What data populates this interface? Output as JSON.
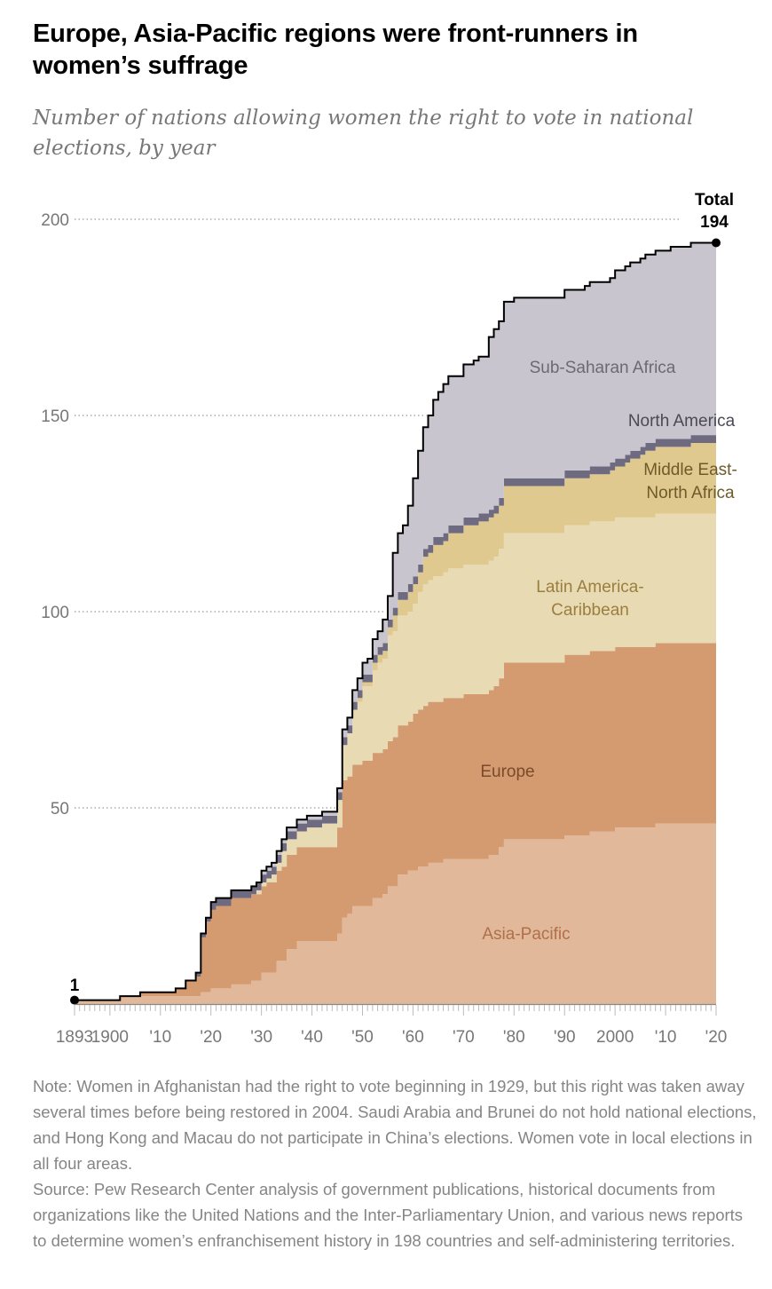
{
  "title": "Europe, Asia-Pacific regions were front-runners in women’s suffrage",
  "subtitle": "Number of nations allowing women the right to vote in national elections, by year",
  "chart_data": {
    "type": "area",
    "stacked": true,
    "step": true,
    "title": "Europe, Asia-Pacific regions were front-runners in women’s suffrage",
    "subtitle": "Number of nations allowing women the right to vote in national elections, by year",
    "xlim": [
      1893,
      2020
    ],
    "ylim": [
      0,
      200
    ],
    "y_ticks": [
      50,
      100,
      150,
      200
    ],
    "y_tick_labels": [
      "50",
      "100",
      "150",
      "200"
    ],
    "x_ticks": [
      1893,
      1900,
      1910,
      1920,
      1930,
      1940,
      1950,
      1960,
      1970,
      1980,
      1990,
      2000,
      2010,
      2020
    ],
    "x_tick_labels": [
      "1893",
      "1900",
      "'10",
      "'20",
      "'30",
      "'40",
      "'50",
      "'60",
      "'70",
      "'80",
      "'90",
      "2000",
      "'10",
      "'20"
    ],
    "grid": "dotted horizontal",
    "legend": "inline labels",
    "series": [
      {
        "name": "Asia-Pacific",
        "color": "#e2b89a",
        "label_color": "#b0704a",
        "steps": [
          [
            1893,
            1
          ],
          [
            1902,
            2
          ],
          [
            1918,
            3
          ],
          [
            1920,
            4
          ],
          [
            1924,
            5
          ],
          [
            1928,
            6
          ],
          [
            1930,
            8
          ],
          [
            1933,
            11
          ],
          [
            1935,
            14
          ],
          [
            1937,
            16
          ],
          [
            1945,
            18
          ],
          [
            1946,
            22
          ],
          [
            1947,
            23
          ],
          [
            1948,
            25
          ],
          [
            1952,
            27
          ],
          [
            1954,
            28
          ],
          [
            1955,
            30
          ],
          [
            1957,
            33
          ],
          [
            1959,
            34
          ],
          [
            1961,
            35
          ],
          [
            1963,
            36
          ],
          [
            1966,
            37
          ],
          [
            1975,
            38
          ],
          [
            1977,
            40
          ],
          [
            1978,
            42
          ],
          [
            1990,
            43
          ],
          [
            1995,
            44
          ],
          [
            2000,
            45
          ],
          [
            2008,
            46
          ]
        ]
      },
      {
        "name": "Europe",
        "color": "#d49a70",
        "label_color": "#7a4a2a",
        "steps": [
          [
            1906,
            1
          ],
          [
            1913,
            2
          ],
          [
            1915,
            4
          ],
          [
            1917,
            5
          ],
          [
            1918,
            14
          ],
          [
            1919,
            18
          ],
          [
            1920,
            20
          ],
          [
            1921,
            21
          ],
          [
            1924,
            22
          ],
          [
            1931,
            23
          ],
          [
            1934,
            24
          ],
          [
            1945,
            27
          ],
          [
            1946,
            35
          ],
          [
            1948,
            36
          ],
          [
            1950,
            37
          ],
          [
            1956,
            38
          ],
          [
            1960,
            40
          ],
          [
            1962,
            41
          ],
          [
            1970,
            42
          ],
          [
            1976,
            43
          ],
          [
            1978,
            45
          ],
          [
            1990,
            46
          ]
        ]
      },
      {
        "name": "Latin America-Caribbean",
        "color": "#e8dbb4",
        "label_color": "#9a7e3e",
        "steps": [
          [
            1929,
            1
          ],
          [
            1932,
            2
          ],
          [
            1934,
            4
          ],
          [
            1939,
            5
          ],
          [
            1942,
            6
          ],
          [
            1945,
            7
          ],
          [
            1946,
            9
          ],
          [
            1947,
            11
          ],
          [
            1948,
            14
          ],
          [
            1949,
            16
          ],
          [
            1950,
            19
          ],
          [
            1952,
            21
          ],
          [
            1953,
            23
          ],
          [
            1955,
            27
          ],
          [
            1957,
            28
          ],
          [
            1961,
            30
          ],
          [
            1962,
            31
          ],
          [
            1964,
            32
          ],
          [
            1967,
            33
          ]
        ]
      },
      {
        "name": "Middle East-North Africa",
        "color": "#e0c98e",
        "label_color": "#6e5a2a",
        "steps": [
          [
            1949,
            1
          ],
          [
            1952,
            2
          ],
          [
            1956,
            4
          ],
          [
            1959,
            5
          ],
          [
            1962,
            7
          ],
          [
            1964,
            8
          ],
          [
            1967,
            9
          ],
          [
            1970,
            10
          ],
          [
            1973,
            11
          ],
          [
            1978,
            12
          ],
          [
            1999,
            13
          ],
          [
            2002,
            14
          ],
          [
            2003,
            15
          ],
          [
            2005,
            16
          ],
          [
            2006,
            17
          ],
          [
            2015,
            18
          ]
        ]
      },
      {
        "name": "North America",
        "color": "#6e6a80",
        "label_color": "#4a4a55",
        "steps": [
          [
            1917,
            1
          ],
          [
            1920,
            2
          ]
        ]
      },
      {
        "name": "Sub-Saharan Africa",
        "color": "#c8c5ce",
        "label_color": "#6a6a72",
        "steps": [
          [
            1930,
            1
          ],
          [
            1946,
            2
          ],
          [
            1948,
            3
          ],
          [
            1951,
            4
          ],
          [
            1954,
            6
          ],
          [
            1956,
            14
          ],
          [
            1957,
            15
          ],
          [
            1958,
            17
          ],
          [
            1959,
            20
          ],
          [
            1960,
            25
          ],
          [
            1961,
            29
          ],
          [
            1962,
            31
          ],
          [
            1963,
            33
          ],
          [
            1964,
            35
          ],
          [
            1965,
            37
          ],
          [
            1966,
            38
          ],
          [
            1970,
            39
          ],
          [
            1972,
            40
          ],
          [
            1975,
            44
          ],
          [
            1976,
            45
          ],
          [
            1980,
            46
          ],
          [
            1994,
            47
          ],
          [
            2000,
            48
          ],
          [
            2011,
            49
          ]
        ]
      }
    ],
    "annotations": {
      "start_value": "1",
      "end_label": "Total",
      "end_value": "194"
    }
  },
  "labels": {
    "ssa": "Sub-Saharan Africa",
    "na": "North America",
    "mena_1": "Middle East-",
    "mena_2": "North Africa",
    "lac_1": "Latin America-",
    "lac_2": "Caribbean",
    "europe": "Europe",
    "ap": "Asia-Pacific"
  },
  "note": "Note: Women in Afghanistan had the right to vote beginning in 1929, but this right was taken away several times before being restored in 2004. Saudi Arabia and Brunei do not hold national elections, and Hong Kong and Macau do not participate in China’s elections. Women vote in local elections in all four areas.",
  "source": "Source: Pew Research Center analysis of government publications, historical documents from organizations like the United Nations and the Inter-Parliamentary Union, and various news reports to determine women’s enfranchisement history in 198 countries and self-administering territories."
}
